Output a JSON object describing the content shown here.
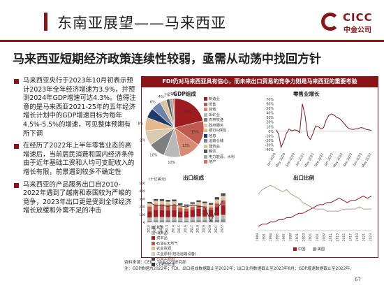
{
  "header": {
    "title": "东南亚展望——马来西亚",
    "logo_text": "CICC",
    "logo_sub": "中金公司"
  },
  "headline": "马来西亚短期经济政策连续性较弱，亟需从动荡中找回方针",
  "bullets": [
    "马来西亚央行于2023年10月初表示预计2023年全年经济增速为3.9%，并预测2024年GDP增速可达4.3%。值得注意的是马来西亚2021-25年的五年经济增长计划中的GDP增速目标为每年4.5%-5.5%的增速，可见整体预期有所下调",
    "在经历了2022年上半年零售业态的高增速后，当前居民消费和国内经济条件由于近年基础工资和人均可支配收入的增长有限，前景遇到较多不确定性",
    "马来西亚的产品服务出口自2010-2022年遇到了越南和泰国较为严峻的竞争，2023年出口更是受到全球经济增长放缓和外需不足的冲击"
  ],
  "ribbon": "FDI仍对马来西亚具有信心，而未来出口贸易的竞争力则是马来西亚的重要考验",
  "charts": {
    "gdp": {
      "title": "GDP组成",
      "legend": [
        "制造业",
        "零售",
        "其他",
        "采矿业",
        "农林牧渔",
        "政府服务",
        "银行&保险",
        "信息",
        "运输仓储",
        "建筑业",
        "餐饮",
        "电力能源、水利",
        "地产"
      ],
      "legend_colors": [
        "#9e1b20",
        "#c05a4e",
        "#d98b73",
        "#b9b9b9",
        "#7f7f7f",
        "#d9cbb0",
        "#e7b98a",
        "#1f3b6b",
        "#6d84a8",
        "#d9c4a0",
        "#555555",
        "#a5a5a5",
        "#e06c57"
      ]
    },
    "retail": {
      "title": "零售业增长"
    },
    "export_comp": {
      "title": "出口组成",
      "unit": "(十亿美元)",
      "legend": [
        "其他",
        "消费品",
        "资本品",
        "石油&天然气",
        "农业资源",
        "工业原料(包括运输设备)",
        "已加工原料",
        "CDP增长率"
      ],
      "legend_colors": [
        "#8c8c8c",
        "#b9b9b9",
        "#9e1b20",
        "#c05a4e",
        "#e7b98a",
        "#d9cbb0",
        "#4a4a4a",
        "#333333"
      ]
    },
    "export_ratio": {
      "title": "出口比例",
      "legend": [
        "中国",
        "美国"
      ],
      "legend_colors": [
        "#9e1b20",
        "#b0a090"
      ]
    }
  },
  "chart_data": [
    {
      "type": "pie",
      "title": "GDP组成",
      "values": [
        23,
        15,
        13,
        10,
        10,
        9,
        8,
        6,
        6,
        4,
        2,
        2,
        1
      ],
      "labels": [
        "23%",
        "15%",
        "13%",
        "10%",
        "10%",
        "9%",
        "8%",
        "6%",
        "6%",
        "4%",
        "2%",
        "2%",
        "1%"
      ],
      "colors": [
        "#9e1b20",
        "#c05a4e",
        "#d98b73",
        "#b9b9b9",
        "#7f7f7f",
        "#d9cbb0",
        "#e7b98a",
        "#1f3b6b",
        "#6d84a8",
        "#d9c4a0",
        "#555555",
        "#a5a5a5",
        "#e06c57"
      ]
    },
    {
      "type": "line",
      "title": "零售业增长",
      "ylim": [
        -40,
        70
      ],
      "yticks": [
        "70%",
        "60%",
        "50%",
        "40%",
        "30%",
        "20%",
        "10%",
        "0%",
        "-10%",
        "-20%",
        "-30%",
        "-40%"
      ],
      "xticks": [
        "Jan 2020",
        "May 2020",
        "Sep 2020",
        "Jan 2021",
        "May 2021",
        "Sep 2021",
        "Jan 2022",
        "May 2022",
        "Sep 2022",
        "Jan 2023",
        "May 2023"
      ],
      "values": [
        3,
        -5,
        -35,
        -22,
        -5,
        5,
        1,
        3,
        2,
        -3,
        60,
        35,
        -10,
        -18,
        -5,
        12,
        10,
        5,
        8,
        25,
        35,
        38,
        35,
        30,
        28,
        22,
        15,
        8,
        5,
        4,
        5,
        6,
        8,
        7,
        4,
        3,
        2
      ]
    },
    {
      "type": "bar",
      "title": "出口组成",
      "ylim": [
        0,
        500
      ],
      "yticks": [
        "500",
        "400",
        "300",
        "200",
        "100",
        "0"
      ],
      "categories": [
        "2010",
        "2011",
        "2012",
        "2013",
        "2014",
        "2015",
        "2016",
        "2017",
        "2018",
        "2019",
        "2020",
        "2021",
        "2022"
      ],
      "series": [
        {
          "name": "其他",
          "values": [
            20,
            22,
            22,
            22,
            22,
            20,
            20,
            22,
            25,
            25,
            24,
            30,
            35
          ]
        },
        {
          "name": "消费品",
          "values": [
            40,
            45,
            45,
            44,
            45,
            40,
            40,
            45,
            50,
            48,
            46,
            55,
            60
          ]
        },
        {
          "name": "资本品",
          "values": [
            80,
            90,
            88,
            85,
            88,
            80,
            78,
            88,
            95,
            90,
            88,
            110,
            120
          ]
        },
        {
          "name": "石油&天然气",
          "values": [
            60,
            70,
            72,
            70,
            70,
            45,
            35,
            40,
            45,
            40,
            30,
            45,
            65
          ]
        },
        {
          "name": "农业资源",
          "values": [
            20,
            25,
            22,
            20,
            20,
            18,
            18,
            20,
            20,
            18,
            18,
            25,
            28
          ]
        },
        {
          "name": "工业原料(包括运输设备)",
          "values": [
            20,
            22,
            22,
            22,
            22,
            20,
            18,
            20,
            22,
            20,
            18,
            25,
            28
          ]
        },
        {
          "name": "已加工原料",
          "values": [
            20,
            22,
            24,
            22,
            23,
            20,
            18,
            20,
            23,
            22,
            22,
            30,
            35
          ]
        }
      ],
      "line": {
        "name": "CDP增长率",
        "values": [
          7.4,
          5.3,
          5.5,
          4.7,
          6.0,
          5.1,
          4.4,
          5.8,
          4.8,
          4.4,
          -5.5,
          3.3,
          8.7
        ]
      }
    },
    {
      "type": "line",
      "title": "出口比例",
      "series": [
        {
          "name": "中国",
          "values": [
            2,
            3,
            3,
            4,
            4,
            5,
            5,
            6,
            6,
            7,
            8,
            8,
            9,
            10,
            11,
            12,
            12,
            13,
            13,
            14,
            15,
            14,
            13,
            14,
            14,
            15,
            16,
            15,
            16
          ]
        },
        {
          "name": "美国",
          "values": [
            17,
            19,
            20,
            21,
            20,
            19,
            18,
            19,
            17,
            16,
            15,
            13,
            12,
            11,
            10,
            10,
            10,
            9,
            9,
            9,
            9,
            10,
            10,
            10,
            10,
            11,
            10,
            10,
            10
          ]
        }
      ],
      "xticks": [
        "1989",
        "1991",
        "1993",
        "1995",
        "1997",
        "1999",
        "2001",
        "2003",
        "2005",
        "2007",
        "2009",
        "2011",
        "2013",
        "2015",
        "2017",
        "2019",
        "2021",
        "2023"
      ]
    }
  ],
  "footer": {
    "source": "资料来源：CEIC，中金公司研究部",
    "note": "注：GDP数据为2022年；FDI、出口组成数据截止至2022年；出口比例数据截止至2023年8月；GDP增速数据截止至2022年。",
    "page": "67"
  }
}
